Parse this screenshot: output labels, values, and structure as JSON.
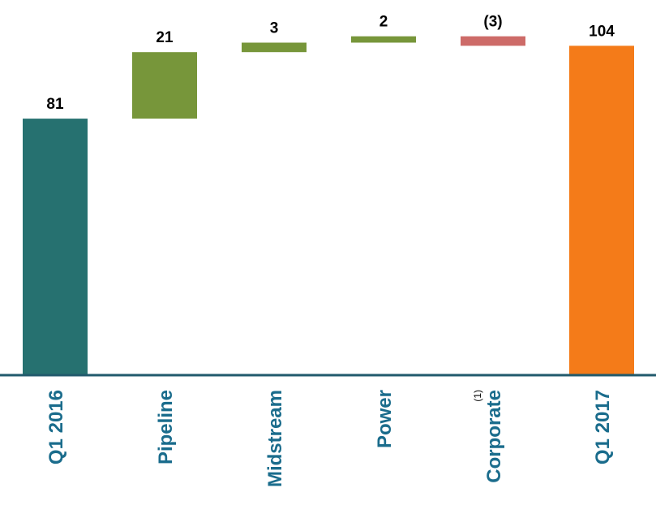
{
  "chart_data": {
    "type": "bar",
    "subtype": "waterfall",
    "categories": [
      "Q1 2016",
      "Pipeline",
      "Midstream",
      "Power",
      "Corporate",
      "Q1 2017"
    ],
    "footnote_markers": [
      "",
      "",
      "",
      "",
      "(1)",
      ""
    ],
    "bars": [
      {
        "category": "Q1 2016",
        "kind": "total",
        "start": 0,
        "end": 81,
        "label": "81"
      },
      {
        "category": "Pipeline",
        "kind": "increase",
        "start": 81,
        "end": 102,
        "label": "21"
      },
      {
        "category": "Midstream",
        "kind": "increase",
        "start": 102,
        "end": 105,
        "label": "3"
      },
      {
        "category": "Power",
        "kind": "increase",
        "start": 105,
        "end": 107,
        "label": "2"
      },
      {
        "category": "Corporate",
        "kind": "decrease",
        "start": 107,
        "end": 104,
        "label": "(3)"
      },
      {
        "category": "Q1 2017",
        "kind": "total",
        "start": 0,
        "end": 104,
        "label": "104"
      }
    ],
    "values": [
      81,
      21,
      3,
      2,
      -3,
      104
    ],
    "ylim": [
      0,
      107
    ],
    "title": "",
    "xlabel": "",
    "ylabel": "",
    "grid": false,
    "colors": {
      "Q1 2016": "#267170",
      "increase": "#77963a",
      "decrease": "#cd6b68",
      "Q1 2017": "#f47b19",
      "axis": "#215a6c",
      "category_text": "#1a6c8c"
    }
  }
}
